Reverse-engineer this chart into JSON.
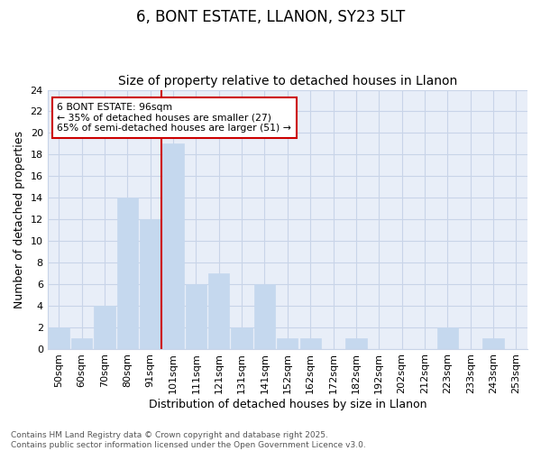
{
  "title1": "6, BONT ESTATE, LLANON, SY23 5LT",
  "title2": "Size of property relative to detached houses in Llanon",
  "xlabel": "Distribution of detached houses by size in Llanon",
  "ylabel": "Number of detached properties",
  "categories": [
    "50sqm",
    "60sqm",
    "70sqm",
    "80sqm",
    "91sqm",
    "101sqm",
    "111sqm",
    "121sqm",
    "131sqm",
    "141sqm",
    "152sqm",
    "162sqm",
    "172sqm",
    "182sqm",
    "192sqm",
    "202sqm",
    "212sqm",
    "223sqm",
    "233sqm",
    "243sqm",
    "253sqm"
  ],
  "values": [
    2,
    1,
    4,
    14,
    12,
    19,
    6,
    7,
    2,
    6,
    1,
    1,
    0,
    1,
    0,
    0,
    0,
    2,
    0,
    1,
    0
  ],
  "bar_color": "#c5d8ee",
  "bar_edge_color": "#c5d8ee",
  "grid_color": "#c8d4e8",
  "background_color": "#ffffff",
  "ax_background_color": "#e8eef8",
  "vline_color": "#cc0000",
  "annotation_text": "6 BONT ESTATE: 96sqm\n← 35% of detached houses are smaller (27)\n65% of semi-detached houses are larger (51) →",
  "annotation_box_color": "#ffffff",
  "annotation_box_edge": "#cc0000",
  "ylim": [
    0,
    24
  ],
  "yticks": [
    0,
    2,
    4,
    6,
    8,
    10,
    12,
    14,
    16,
    18,
    20,
    22,
    24
  ],
  "footer_text": "Contains HM Land Registry data © Crown copyright and database right 2025.\nContains public sector information licensed under the Open Government Licence v3.0.",
  "title_fontsize": 12,
  "subtitle_fontsize": 10,
  "tick_fontsize": 8,
  "label_fontsize": 9,
  "footer_fontsize": 6.5
}
